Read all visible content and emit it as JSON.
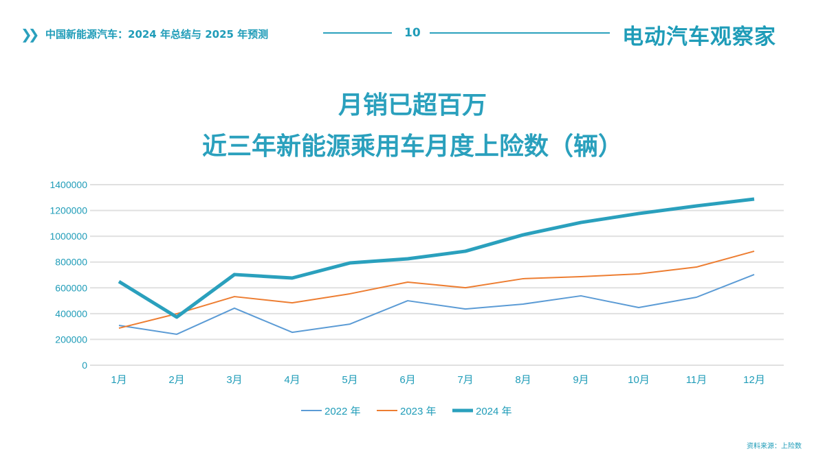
{
  "header": {
    "title": "中国新能源汽车：2024 年总结与 2025 年预测",
    "page_number": "10",
    "brand": "电动汽车观察家"
  },
  "source": "资料来源：上险数",
  "chart_data": {
    "type": "line",
    "title": [
      "月销已超百万",
      "近三年新能源乘用车月度上险数（辆）"
    ],
    "categories": [
      "1月",
      "2月",
      "3月",
      "4月",
      "5月",
      "6月",
      "7月",
      "8月",
      "9月",
      "10月",
      "11月",
      "12月"
    ],
    "ylim": [
      0,
      1400000
    ],
    "yticks": [
      "0",
      "200000",
      "400000",
      "600000",
      "800000",
      "1000000",
      "1200000",
      "1400000"
    ],
    "grid": true,
    "legend_position": "bottom",
    "series": [
      {
        "name": "2022 年",
        "color": "#5b9bd5",
        "values": [
          309000,
          240000,
          442000,
          255000,
          319000,
          500000,
          436000,
          474000,
          538000,
          447000,
          527000,
          703000
        ]
      },
      {
        "name": "2023 年",
        "color": "#ed7d31",
        "values": [
          287000,
          399000,
          532000,
          484000,
          554000,
          644000,
          601000,
          671000,
          687000,
          708000,
          761000,
          884000
        ]
      },
      {
        "name": "2024 年",
        "color": "#2aa0bd",
        "values": [
          649000,
          373000,
          703000,
          676000,
          793000,
          825000,
          884000,
          1011000,
          1107000,
          1176000,
          1235000,
          1288000
        ]
      }
    ]
  }
}
